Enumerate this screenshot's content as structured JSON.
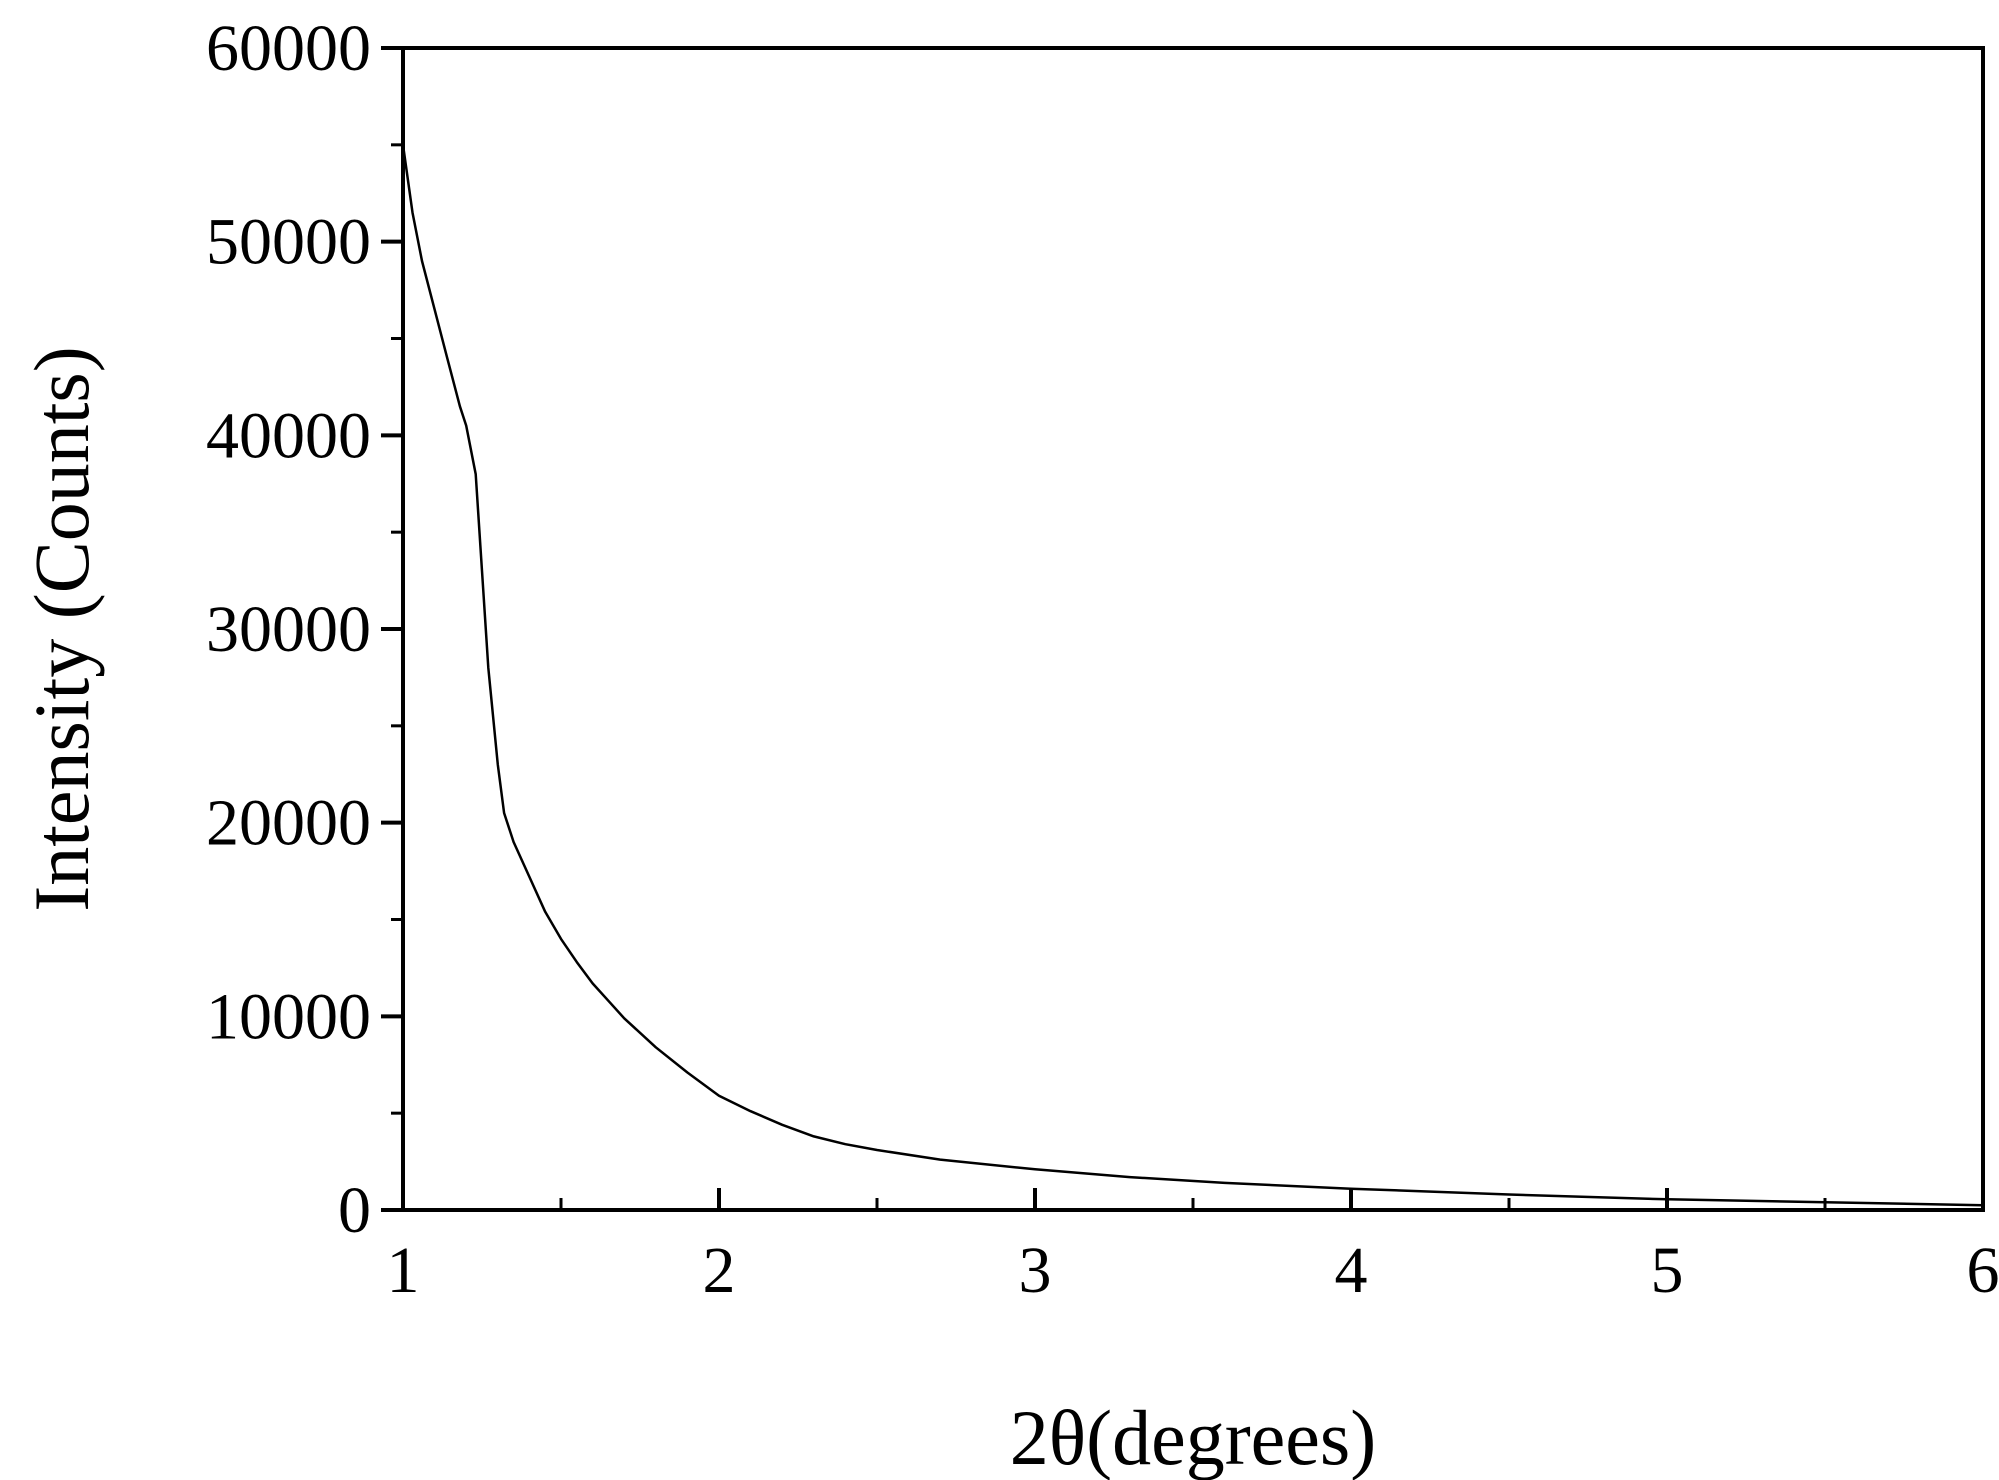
{
  "chart_data": {
    "type": "line",
    "title": "",
    "xlabel": "2θ(degrees)",
    "ylabel": "Intensity (Counts)",
    "xlim": [
      1,
      6
    ],
    "ylim": [
      0,
      60000
    ],
    "x_ticks": [
      1,
      2,
      3,
      4,
      5,
      6
    ],
    "x_tick_labels": [
      "1",
      "2",
      "3",
      "4",
      "5",
      "6"
    ],
    "x_minor_ticks": [
      1.5,
      2.5,
      3.5,
      4.5,
      5.5
    ],
    "y_ticks": [
      0,
      10000,
      20000,
      30000,
      40000,
      50000,
      60000
    ],
    "y_tick_labels": [
      "0",
      "10000",
      "20000",
      "30000",
      "40000",
      "50000",
      "60000"
    ],
    "y_minor_ticks": [
      5000,
      15000,
      25000,
      35000,
      45000,
      55000
    ],
    "grid": false,
    "legend": "none",
    "line_color": "#000000",
    "series": [
      {
        "x": [
          1.0,
          1.03,
          1.06,
          1.1,
          1.14,
          1.18,
          1.2,
          1.23,
          1.25,
          1.27,
          1.3,
          1.32,
          1.35,
          1.4,
          1.45,
          1.5,
          1.55,
          1.6,
          1.65,
          1.7,
          1.8,
          1.9,
          2.0,
          2.1,
          2.2,
          2.3,
          2.4,
          2.5,
          2.7,
          3.0,
          3.3,
          3.6,
          4.0,
          4.5,
          5.0,
          5.5,
          6.0
        ],
        "y": [
          55000,
          51500,
          49000,
          46500,
          44000,
          41500,
          40500,
          38000,
          33000,
          28000,
          23000,
          20500,
          19000,
          17200,
          15400,
          14000,
          12800,
          11700,
          10800,
          9900,
          8400,
          7100,
          5900,
          5100,
          4400,
          3800,
          3400,
          3100,
          2600,
          2100,
          1700,
          1400,
          1100,
          800,
          550,
          400,
          250
        ]
      }
    ]
  }
}
